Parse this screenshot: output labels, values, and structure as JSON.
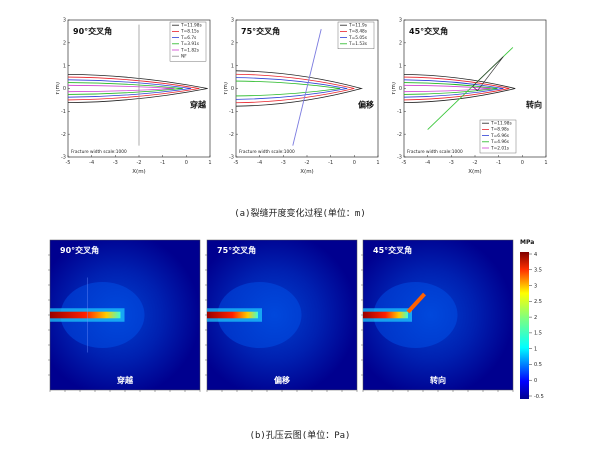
{
  "figure": {
    "caption_a": "(a)裂缝开度变化过程(单位：m)",
    "caption_b": "(b)孔压云图(单位：Pa)"
  },
  "top_panels": [
    {
      "angle": "90°交叉角",
      "result": "穿越",
      "scale_note": "Fracture width scale:1000",
      "xlabel": "X(m)",
      "ylabel": "Y(m)",
      "legend": [
        "T=11.98s",
        "T=8.15s",
        "T=6.7s",
        "T=3.91s",
        "T=1.82s",
        "NF"
      ]
    },
    {
      "angle": "75°交叉角",
      "result": "偏移",
      "scale_note": "Fracture width scale:1000",
      "xlabel": "X(m)",
      "ylabel": "Y(m)",
      "legend": [
        "T=11.9s",
        "T=8.48s",
        "T=5.05s",
        "T=1.53s"
      ]
    },
    {
      "angle": "45°交叉角",
      "result": "转向",
      "scale_note": "Fracture width scale:1000",
      "xlabel": "X(m)",
      "ylabel": "Y(m)",
      "legend": [
        "T=11.98s",
        "T=8.98s",
        "T=6.96s",
        "T=4.96s",
        "T=2.01s"
      ]
    }
  ],
  "bottom_panels": [
    {
      "angle": "90°交叉角",
      "result": "穿越"
    },
    {
      "angle": "75°交叉角",
      "result": "偏移"
    },
    {
      "angle": "45°交叉角",
      "result": "转向"
    }
  ],
  "colorbar": {
    "unit": "MPa",
    "labels": [
      "4",
      "3.5",
      "3",
      "2.5",
      "2",
      "1.5",
      "1",
      "0.5",
      "0",
      "-0.5"
    ]
  },
  "axis_ticks": {
    "x": [
      "-5",
      "-4",
      "-3",
      "-2",
      "-1",
      "0",
      "1"
    ],
    "y": [
      "3",
      "2",
      "1",
      "0",
      "-1",
      "-2",
      "-3"
    ]
  },
  "colors": {
    "legend_colors": [
      "#222222",
      "#e8222a",
      "#2d3fd6",
      "#22b822",
      "#d040d0",
      "#8a8a8a"
    ],
    "jet_low": "#00008f",
    "jet_high": "#800000"
  }
}
